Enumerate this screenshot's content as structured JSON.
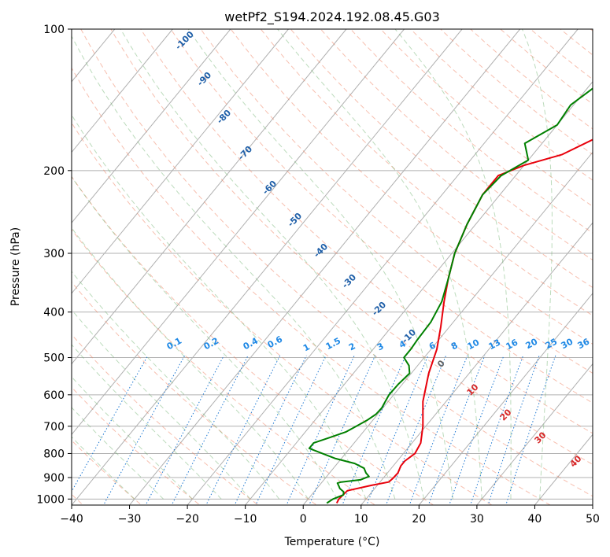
{
  "chart_data": {
    "type": "line",
    "title": "wetPf2_S194.2024.192.08.45.G03",
    "xlabel": "Temperature (°C)",
    "ylabel": "Pressure (hPa)",
    "xlim": [
      -40,
      50
    ],
    "ylim": [
      1030,
      100
    ],
    "y_scale": "log",
    "grid": true,
    "x_ticks": [
      -40,
      -30,
      -20,
      -10,
      0,
      10,
      20,
      30,
      40,
      50
    ],
    "x_tick_labels": [
      "−40",
      "−30",
      "−20",
      "−10",
      "0",
      "10",
      "20",
      "30",
      "40",
      "50"
    ],
    "y_ticks": [
      1000,
      900,
      800,
      700,
      600,
      500,
      400,
      300,
      200,
      100
    ],
    "y_tick_labels": [
      "1000",
      "900",
      "800",
      "700",
      "600",
      "500",
      "400",
      "300",
      "200",
      "100"
    ],
    "series": [
      {
        "color": "#e8000b",
        "pressure": [
          1020,
          1000,
          960,
          935,
          920,
          905,
          880,
          850,
          830,
          800,
          760,
          700,
          620,
          540,
          480,
          430,
          380,
          340,
          300,
          260,
          225,
          205,
          195,
          185,
          165,
          150,
          135,
          120,
          105,
          100
        ],
        "temperature": [
          5.5,
          5.3,
          5.6,
          9.0,
          11.5,
          11.7,
          11.8,
          11.3,
          11.3,
          12.0,
          11.5,
          9.5,
          6.0,
          3.0,
          1.0,
          -1.5,
          -4.5,
          -7.0,
          -9.5,
          -11.5,
          -13.0,
          -13.0,
          -10.0,
          -5.0,
          0.0,
          6.0,
          11.5,
          16.0,
          19.5,
          20.5
        ]
      },
      {
        "color": "#008000",
        "pressure": [
          1020,
          1000,
          980,
          965,
          950,
          935,
          925,
          920,
          910,
          895,
          880,
          860,
          840,
          820,
          800,
          780,
          760,
          740,
          720,
          700,
          680,
          660,
          640,
          620,
          600,
          570,
          540,
          520,
          500,
          480,
          460,
          420,
          380,
          340,
          300,
          260,
          225,
          205,
          190,
          175,
          160,
          145,
          130,
          115,
          100
        ],
        "temperature": [
          3.8,
          4.3,
          5.5,
          5.1,
          4.0,
          3.3,
          2.8,
          3.3,
          6.3,
          7.3,
          6.3,
          5.3,
          3.0,
          -1.0,
          -4.0,
          -7.0,
          -7.0,
          -5.0,
          -3.0,
          -2.0,
          -1.0,
          -0.3,
          -0.2,
          -0.5,
          -0.8,
          -0.7,
          -0.3,
          -1.5,
          -3.5,
          -3.5,
          -3.7,
          -3.9,
          -4.9,
          -7.0,
          -9.5,
          -11.5,
          -13.0,
          -12.5,
          -10.0,
          -13.0,
          -10.0,
          -10.5,
          -8.5,
          -5.0,
          0.0
        ]
      }
    ],
    "dry_adiabat_labels": [
      "-100",
      "-90",
      "-80",
      "-70",
      "-60",
      "-50",
      "-40",
      "-30",
      "-20",
      "-10",
      "0",
      "10",
      "20",
      "30",
      "40"
    ],
    "mixing_ratio_labels": [
      "0.1",
      "0.2",
      "0.4",
      "0.6",
      "1",
      "1.5",
      "2",
      "3",
      "4",
      "6",
      "8",
      "10",
      "13",
      "16",
      "20",
      "25",
      "30",
      "36"
    ]
  }
}
